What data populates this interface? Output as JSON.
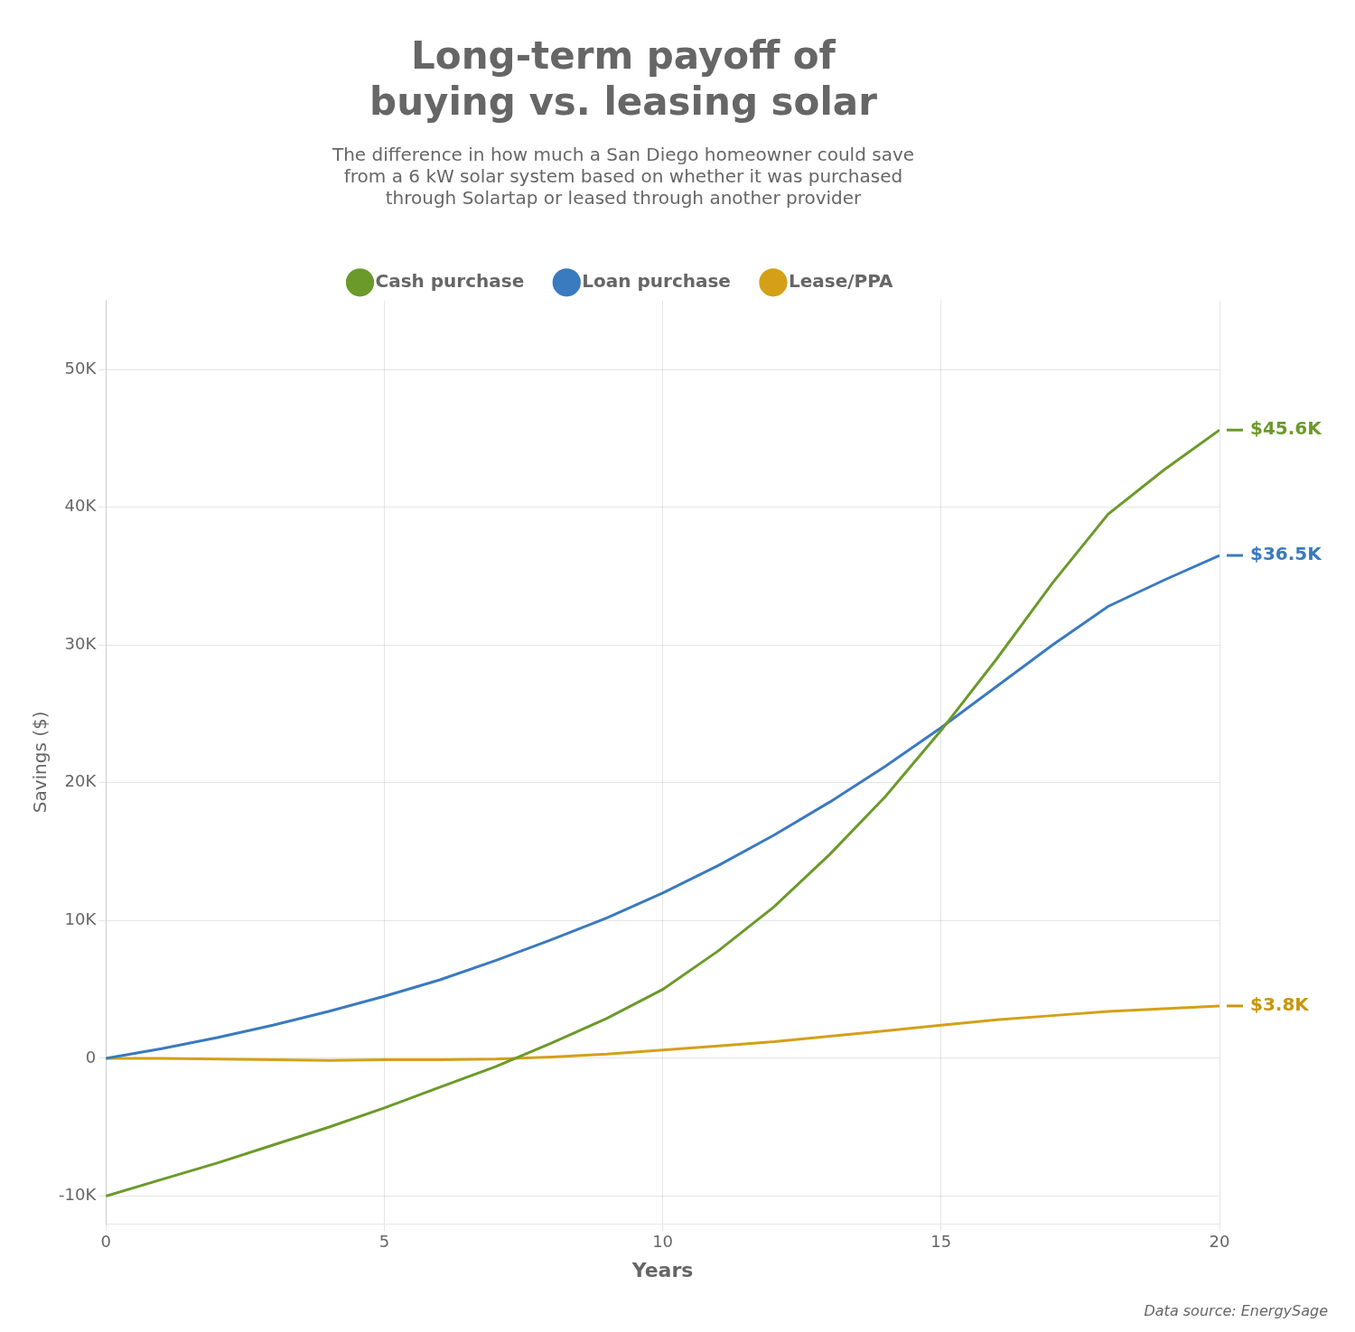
{
  "chart_data": {
    "type": "line",
    "title": [
      "Long-term payoff of",
      "buying vs. leasing solar"
    ],
    "subtitle": [
      "The difference in how much a San Diego homeowner could save",
      "from a 6 kW solar system based on whether it was purchased",
      "through Solartap or leased through another provider"
    ],
    "x": [
      0,
      1,
      2,
      3,
      4,
      5,
      6,
      7,
      8,
      9,
      10,
      11,
      12,
      13,
      14,
      15,
      16,
      17,
      18,
      19,
      20
    ],
    "series": [
      {
        "name": "Cash purchase",
        "color": "#6b9a2a",
        "values": [
          -10000,
          -8800,
          -7600,
          -6300,
          -5000,
          -3600,
          -2100,
          -600,
          1100,
          2900,
          5000,
          7800,
          11000,
          14800,
          19000,
          23800,
          29000,
          34500,
          39500,
          42700,
          45600
        ]
      },
      {
        "name": "Loan purchase",
        "color": "#3a7abf",
        "values": [
          0,
          700,
          1500,
          2400,
          3400,
          4500,
          5700,
          7100,
          8600,
          10200,
          12000,
          14000,
          16200,
          18600,
          21200,
          24000,
          27000,
          30000,
          32800,
          34700,
          36500
        ]
      },
      {
        "name": "Lease/PPA",
        "color": "#d4a017",
        "values": [
          0,
          0,
          -50,
          -100,
          -150,
          -100,
          -100,
          -50,
          100,
          300,
          600,
          900,
          1200,
          1600,
          2000,
          2400,
          2800,
          3100,
          3400,
          3600,
          3800
        ]
      }
    ],
    "xlabel": "Years",
    "ylabel": "Savings ($)",
    "xlim": [
      0,
      20
    ],
    "ylim": [
      -12000,
      55000
    ],
    "xticks": [
      0,
      5,
      10,
      15,
      20
    ],
    "yticks": [
      {
        "value": -10000,
        "label": "-10K"
      },
      0,
      {
        "value": 10000,
        "label": "10K"
      },
      {
        "value": 20000,
        "label": "20K"
      },
      {
        "value": 30000,
        "label": "30K"
      },
      {
        "value": 40000,
        "label": "40K"
      },
      {
        "value": 50000,
        "label": "50K"
      }
    ],
    "grid": true,
    "legend": "top",
    "annotations": [
      {
        "text": "$45.6K",
        "x": 20,
        "y": 45600,
        "color": "#6b9a2a"
      },
      {
        "text": "$36.5K",
        "x": 20,
        "y": 36500,
        "color": "#3a7abf"
      },
      {
        "text": "$3.8K",
        "x": 20,
        "y": 3800,
        "color": "#c8960a"
      }
    ],
    "source": "Data source: EnergySage"
  }
}
